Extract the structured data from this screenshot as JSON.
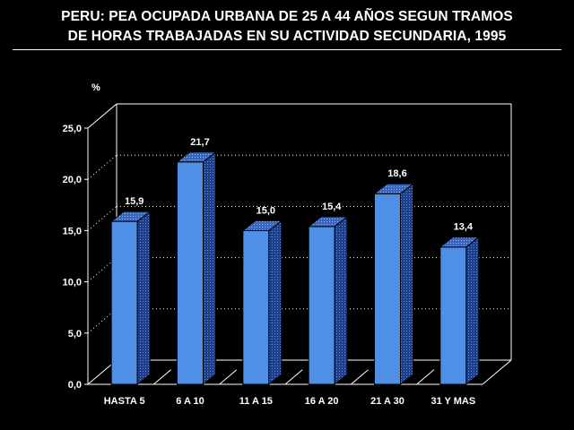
{
  "title_line1": "PERU: PEA OCUPADA URBANA DE 25 A 44 AÑOS SEGUN TRAMOS",
  "title_line2": "DE HORAS TRABAJADAS EN SU ACTIVIDAD SECUNDARIA, 1995",
  "colors": {
    "background": "#000000",
    "bar_front": "#4f8fe6",
    "bar_side": "#1c3f8a",
    "bar_top": "#3666c0",
    "text": "#ffffff"
  },
  "chart_data": {
    "type": "bar",
    "ylabel": "%",
    "categories": [
      "HASTA 5",
      "6 A 10",
      "11 A 15",
      "16 A 20",
      "21 A 30",
      "31 Y MAS"
    ],
    "values": [
      15.9,
      21.7,
      15.0,
      15.4,
      18.6,
      13.4
    ],
    "value_labels": [
      "15,9",
      "21,7",
      "15,0",
      "15,4",
      "18,6",
      "13,4"
    ],
    "ylim": [
      0,
      25
    ],
    "yticks": [
      0,
      5,
      10,
      15,
      20,
      25
    ],
    "ytick_labels": [
      "0,0",
      "5,0",
      "10,0",
      "15,0",
      "20,0",
      "25,0"
    ],
    "grid": true,
    "style": "3d"
  }
}
